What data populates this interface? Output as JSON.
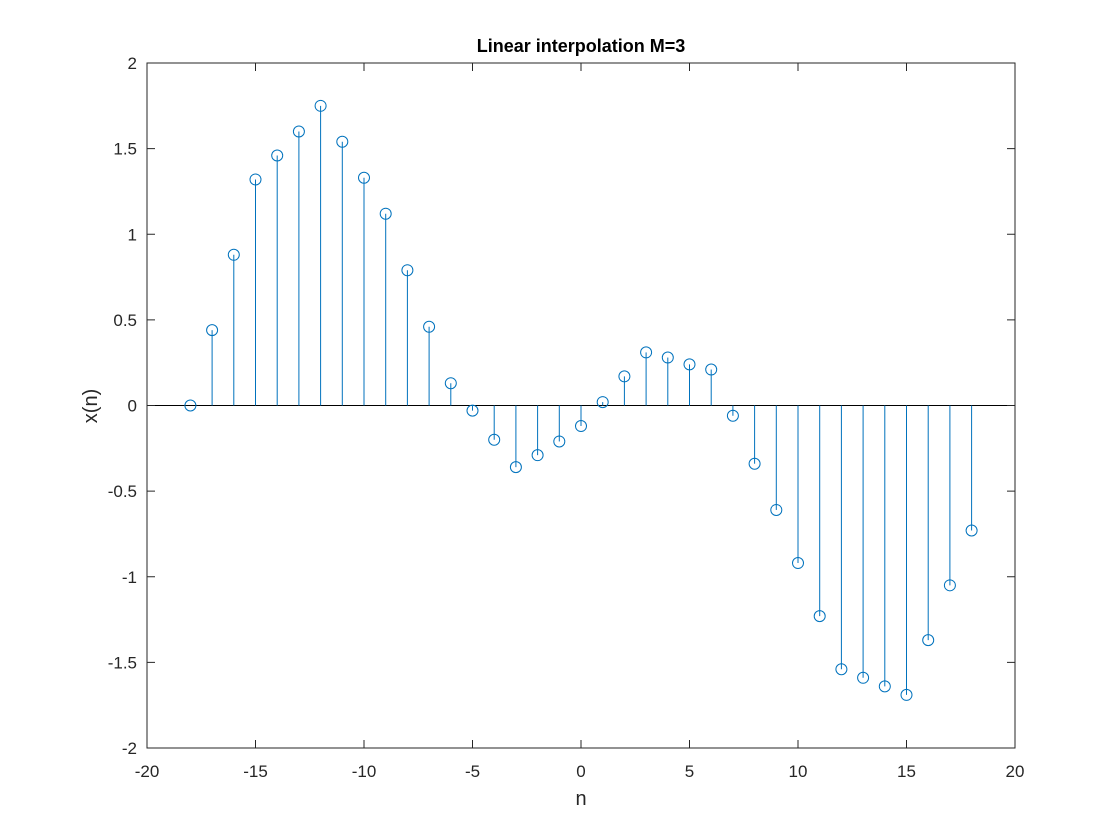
{
  "chart_data": {
    "type": "stem",
    "title": "Linear interpolation M=3",
    "xlabel": "n",
    "ylabel": "x(n)",
    "xlim": [
      -20,
      20
    ],
    "ylim": [
      -2,
      2
    ],
    "xticks": [
      -20,
      -15,
      -10,
      -5,
      0,
      5,
      10,
      15,
      20
    ],
    "yticks": [
      -2,
      -1.5,
      -1,
      -0.5,
      0,
      0.5,
      1,
      1.5,
      2
    ],
    "grid": false,
    "box": true,
    "color": "#0072bd",
    "x": [
      -18,
      -17,
      -16,
      -15,
      -14,
      -13,
      -12,
      -11,
      -10,
      -9,
      -8,
      -7,
      -6,
      -5,
      -4,
      -3,
      -2,
      -1,
      0,
      1,
      2,
      3,
      4,
      5,
      6,
      7,
      8,
      9,
      10,
      11,
      12,
      13,
      14,
      15,
      16,
      17,
      18
    ],
    "y": [
      0,
      0.44,
      0.88,
      1.32,
      1.46,
      1.6,
      1.75,
      1.54,
      1.33,
      1.12,
      0.79,
      0.46,
      0.13,
      -0.03,
      -0.2,
      -0.36,
      -0.29,
      -0.21,
      -0.12,
      0.02,
      0.17,
      0.31,
      0.28,
      0.24,
      0.21,
      -0.06,
      -0.34,
      -0.61,
      -0.92,
      -1.23,
      -1.54,
      -1.59,
      -1.64,
      -1.69,
      -1.37,
      -1.05,
      -0.73
    ]
  }
}
